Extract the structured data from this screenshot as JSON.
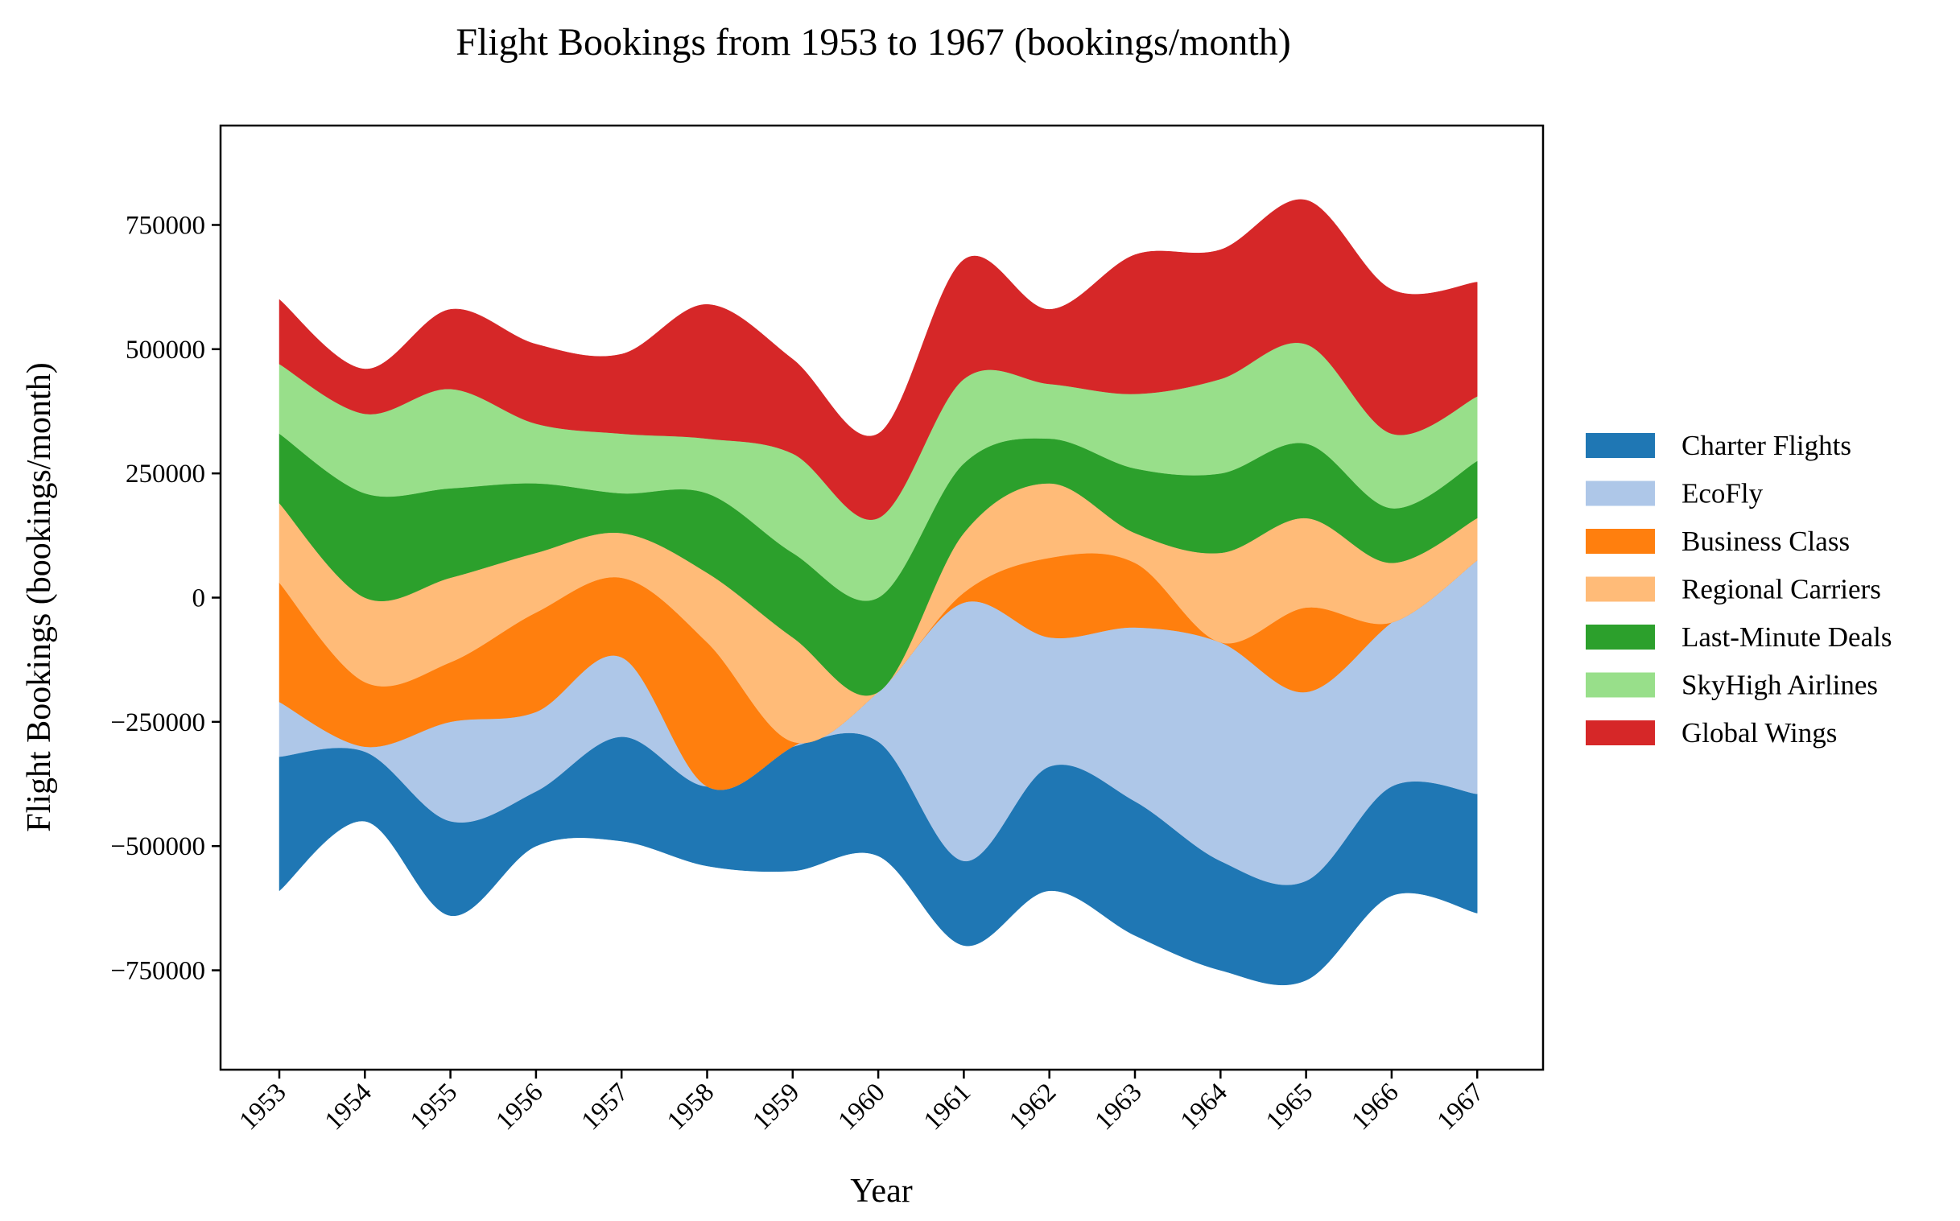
{
  "chart_data": {
    "type": "area",
    "subtype": "streamgraph",
    "title": "Flight Bookings from 1953 to 1967 (bookings/month)",
    "xlabel": "Year",
    "ylabel": "Flight Bookings (bookings/month)",
    "x": [
      "1953",
      "1954",
      "1955",
      "1956",
      "1957",
      "1958",
      "1959",
      "1960",
      "1961",
      "1962",
      "1963",
      "1964",
      "1965",
      "1966",
      "1967"
    ],
    "ylim": [
      -950000,
      950000
    ],
    "yticks": [
      -750000,
      -500000,
      -250000,
      0,
      250000,
      500000,
      750000
    ],
    "ytick_labels": [
      "−750000",
      "−500000",
      "−250000",
      "0",
      "250000",
      "500000",
      "750000"
    ],
    "legend_position": "right, outside plot",
    "grid": false,
    "baseline": [
      -590000,
      -450000,
      -640000,
      -500000,
      -490000,
      -540000,
      -550000,
      -520000,
      -700000,
      -590000,
      -680000,
      -750000,
      -770000,
      -600000,
      -635000
    ],
    "series": [
      {
        "name": "Charter Flights",
        "color": "#1f77b4",
        "values": [
          270000,
          140000,
          190000,
          110000,
          210000,
          160000,
          250000,
          230000,
          170000,
          250000,
          270000,
          220000,
          200000,
          220000,
          240000
        ]
      },
      {
        "name": "EcoFly",
        "color": "#aec7e8",
        "values": [
          110000,
          10000,
          200000,
          160000,
          160000,
          0,
          0,
          100000,
          520000,
          260000,
          350000,
          440000,
          380000,
          330000,
          470000
        ]
      },
      {
        "name": "Business Class",
        "color": "#ff7f0e",
        "values": [
          240000,
          130000,
          120000,
          200000,
          160000,
          290000,
          10000,
          0,
          20000,
          160000,
          130000,
          0,
          170000,
          0,
          0
        ]
      },
      {
        "name": "Regional Carriers",
        "color": "#ffbb78",
        "values": [
          160000,
          170000,
          170000,
          120000,
          90000,
          140000,
          210000,
          0,
          120000,
          150000,
          60000,
          180000,
          180000,
          120000,
          85000
        ]
      },
      {
        "name": "Last-Minute Deals",
        "color": "#2ca02c",
        "values": [
          140000,
          210000,
          180000,
          140000,
          80000,
          160000,
          170000,
          190000,
          140000,
          90000,
          130000,
          160000,
          150000,
          110000,
          115000
        ]
      },
      {
        "name": "SkyHigh Airlines",
        "color": "#98df8a",
        "values": [
          140000,
          160000,
          200000,
          120000,
          120000,
          110000,
          200000,
          160000,
          170000,
          110000,
          150000,
          190000,
          200000,
          150000,
          130000
        ]
      },
      {
        "name": "Global Wings",
        "color": "#d62728",
        "values": [
          130000,
          90000,
          160000,
          160000,
          160000,
          270000,
          190000,
          170000,
          240000,
          150000,
          280000,
          260000,
          290000,
          290000,
          230000
        ]
      }
    ]
  }
}
